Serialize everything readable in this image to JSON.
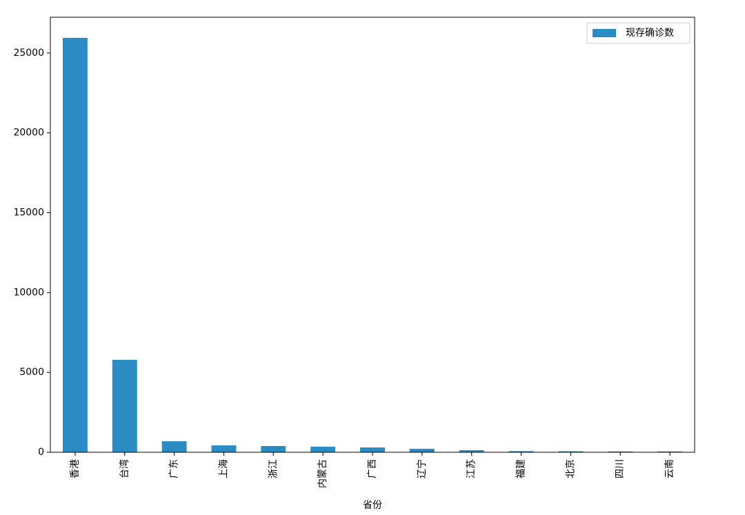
{
  "chart_data": {
    "type": "bar",
    "x_label": "省份",
    "categories": [
      "香港",
      "台湾",
      "广东",
      "上海",
      "浙江",
      "内蒙古",
      "广西",
      "辽宁",
      "江苏",
      "福建",
      "北京",
      "四川",
      "云南"
    ],
    "series": [
      {
        "name": "现存确诊数",
        "color": "#2b8cc4",
        "values": [
          25950,
          5790,
          690,
          430,
          390,
          350,
          300,
          220,
          130,
          70,
          60,
          50,
          50
        ]
      }
    ],
    "ylim": [
      0,
      27240
    ],
    "yticks": [
      0,
      5000,
      10000,
      15000,
      20000,
      25000
    ],
    "legend": "upper right"
  }
}
